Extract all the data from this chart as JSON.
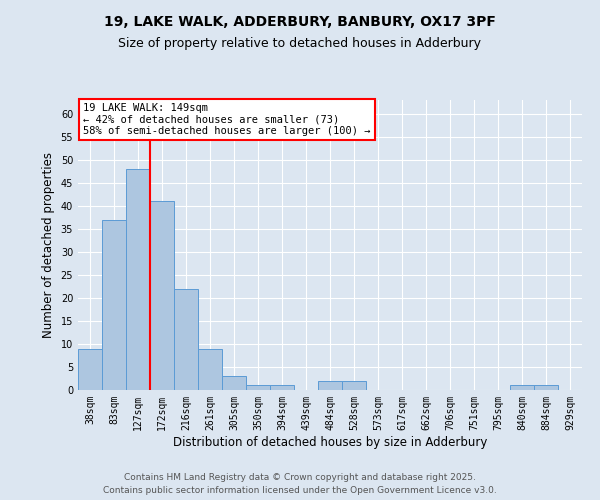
{
  "title1": "19, LAKE WALK, ADDERBURY, BANBURY, OX17 3PF",
  "title2": "Size of property relative to detached houses in Adderbury",
  "xlabel": "Distribution of detached houses by size in Adderbury",
  "ylabel": "Number of detached properties",
  "bin_labels": [
    "38sqm",
    "83sqm",
    "127sqm",
    "172sqm",
    "216sqm",
    "261sqm",
    "305sqm",
    "350sqm",
    "394sqm",
    "439sqm",
    "484sqm",
    "528sqm",
    "573sqm",
    "617sqm",
    "662sqm",
    "706sqm",
    "751sqm",
    "795sqm",
    "840sqm",
    "884sqm",
    "929sqm"
  ],
  "bar_heights": [
    9,
    37,
    48,
    41,
    22,
    9,
    3,
    1,
    1,
    0,
    2,
    2,
    0,
    0,
    0,
    0,
    0,
    0,
    1,
    1,
    0
  ],
  "bar_color": "#adc6e0",
  "bar_edge_color": "#5b9bd5",
  "red_line_x": 2.49,
  "annotation_line1": "19 LAKE WALK: 149sqm",
  "annotation_line2": "← 42% of detached houses are smaller (73)",
  "annotation_line3": "58% of semi-detached houses are larger (100) →",
  "annotation_box_color": "white",
  "annotation_box_edge": "red",
  "ylim": [
    0,
    63
  ],
  "yticks": [
    0,
    5,
    10,
    15,
    20,
    25,
    30,
    35,
    40,
    45,
    50,
    55,
    60
  ],
  "footnote1": "Contains HM Land Registry data © Crown copyright and database right 2025.",
  "footnote2": "Contains public sector information licensed under the Open Government Licence v3.0.",
  "background_color": "#dce6f1",
  "plot_bg_color": "#dce6f1",
  "grid_color": "white",
  "title_fontsize": 10,
  "subtitle_fontsize": 9,
  "axis_fontsize": 8.5,
  "tick_fontsize": 7,
  "footnote_fontsize": 6.5,
  "annotation_fontsize": 7.5
}
